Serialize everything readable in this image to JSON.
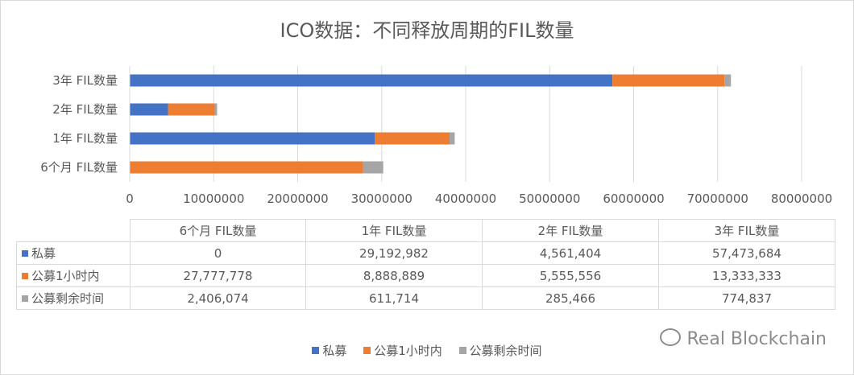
{
  "chart_data": {
    "type": "bar",
    "orientation": "horizontal",
    "stacked": true,
    "title": "ICO数据：不同释放周期的FIL数量",
    "categories": [
      "6个月 FIL数量",
      "1年 FIL数量",
      "2年 FIL数量",
      "3年 FIL数量"
    ],
    "series": [
      {
        "name": "私募",
        "color": "#4472C4",
        "values": [
          0,
          29192982,
          4561404,
          57473684
        ]
      },
      {
        "name": "公募1小时内",
        "color": "#ED7D31",
        "values": [
          27777778,
          8888889,
          5555556,
          13333333
        ]
      },
      {
        "name": "公募剩余时间",
        "color": "#A5A5A5",
        "values": [
          2406074,
          611714,
          285466,
          774837
        ]
      }
    ],
    "xlim": [
      0,
      80000000
    ],
    "xticks": [
      0,
      10000000,
      20000000,
      30000000,
      40000000,
      50000000,
      60000000,
      70000000,
      80000000
    ],
    "xtick_labels": [
      "0",
      "10000000",
      "20000000",
      "30000000",
      "40000000",
      "50000000",
      "60000000",
      "70000000",
      "80000000"
    ],
    "grid": true,
    "legend": "bottom",
    "data_table": {
      "headers": [
        "6个月 FIL数量",
        "1年 FIL数量",
        "2年 FIL数量",
        "3年 FIL数量"
      ],
      "rows": [
        {
          "label": "私募",
          "values": [
            "0",
            "29,192,982",
            "4,561,404",
            "57,473,684"
          ]
        },
        {
          "label": "公募1小时内",
          "values": [
            "27,777,778",
            "8,888,889",
            "5,555,556",
            "13,333,333"
          ]
        },
        {
          "label": "公募剩余时间",
          "values": [
            "2,406,074",
            "611,714",
            "285,466",
            "774,837"
          ]
        }
      ]
    }
  },
  "watermark": {
    "text": "Real Blockchain",
    "icon": "wechat-icon"
  }
}
